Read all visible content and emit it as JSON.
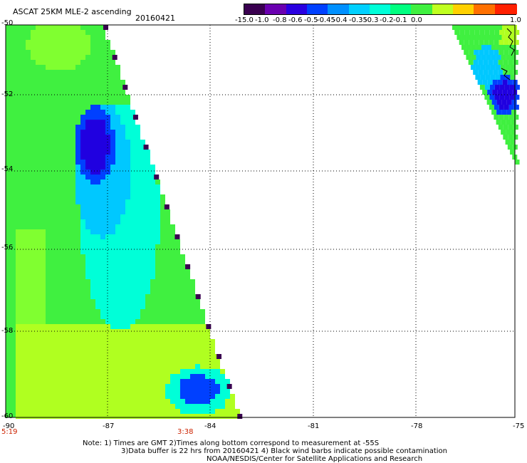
{
  "header": {
    "title": "ASCAT 25KM MLE-2 ascending",
    "date": "20160421"
  },
  "colorbar": {
    "ticks": [
      "-15.0",
      "-1.0",
      "-0.8",
      "-0.6",
      "-0.5",
      "-0.45",
      "-0.4",
      "-0.35",
      "-0.3",
      "-0.2",
      "-0.1",
      "0.0",
      "1.0"
    ],
    "colors": [
      "#3a0050",
      "#6a00b0",
      "#2a00e0",
      "#0040ff",
      "#0090ff",
      "#00d0ff",
      "#00ffd8",
      "#00ff80",
      "#40f040",
      "#c0ff20",
      "#ffd000",
      "#ff7000",
      "#ff2000"
    ]
  },
  "axes": {
    "lat_labels": [
      "-50",
      "-52",
      "-54",
      "-56",
      "-58",
      "-60"
    ],
    "lon_labels": [
      "-90",
      "-87",
      "-84",
      "-81",
      "-78",
      "-75"
    ]
  },
  "time_labels": [
    "5:19",
    "3:38"
  ],
  "notes": [
    "Note: 1) Times are GMT 2)Times along bottom correspond to measurement at -55S",
    "3)Data buffer is 22 hrs from 20160421 4) Black wind barbs indicate possible contamination",
    "NOAA/NESDIS/Center for Satellite Applications and Research"
  ],
  "swaths": {
    "left_colors": {
      "green": "#40f040",
      "lightgreen": "#80ff30",
      "yellowgreen": "#b0ff20",
      "cyan": "#00ffd8",
      "skyblue": "#00c8ff",
      "blue": "#0040ff",
      "darkblue": "#2000e0",
      "purple": "#3a0050"
    }
  }
}
